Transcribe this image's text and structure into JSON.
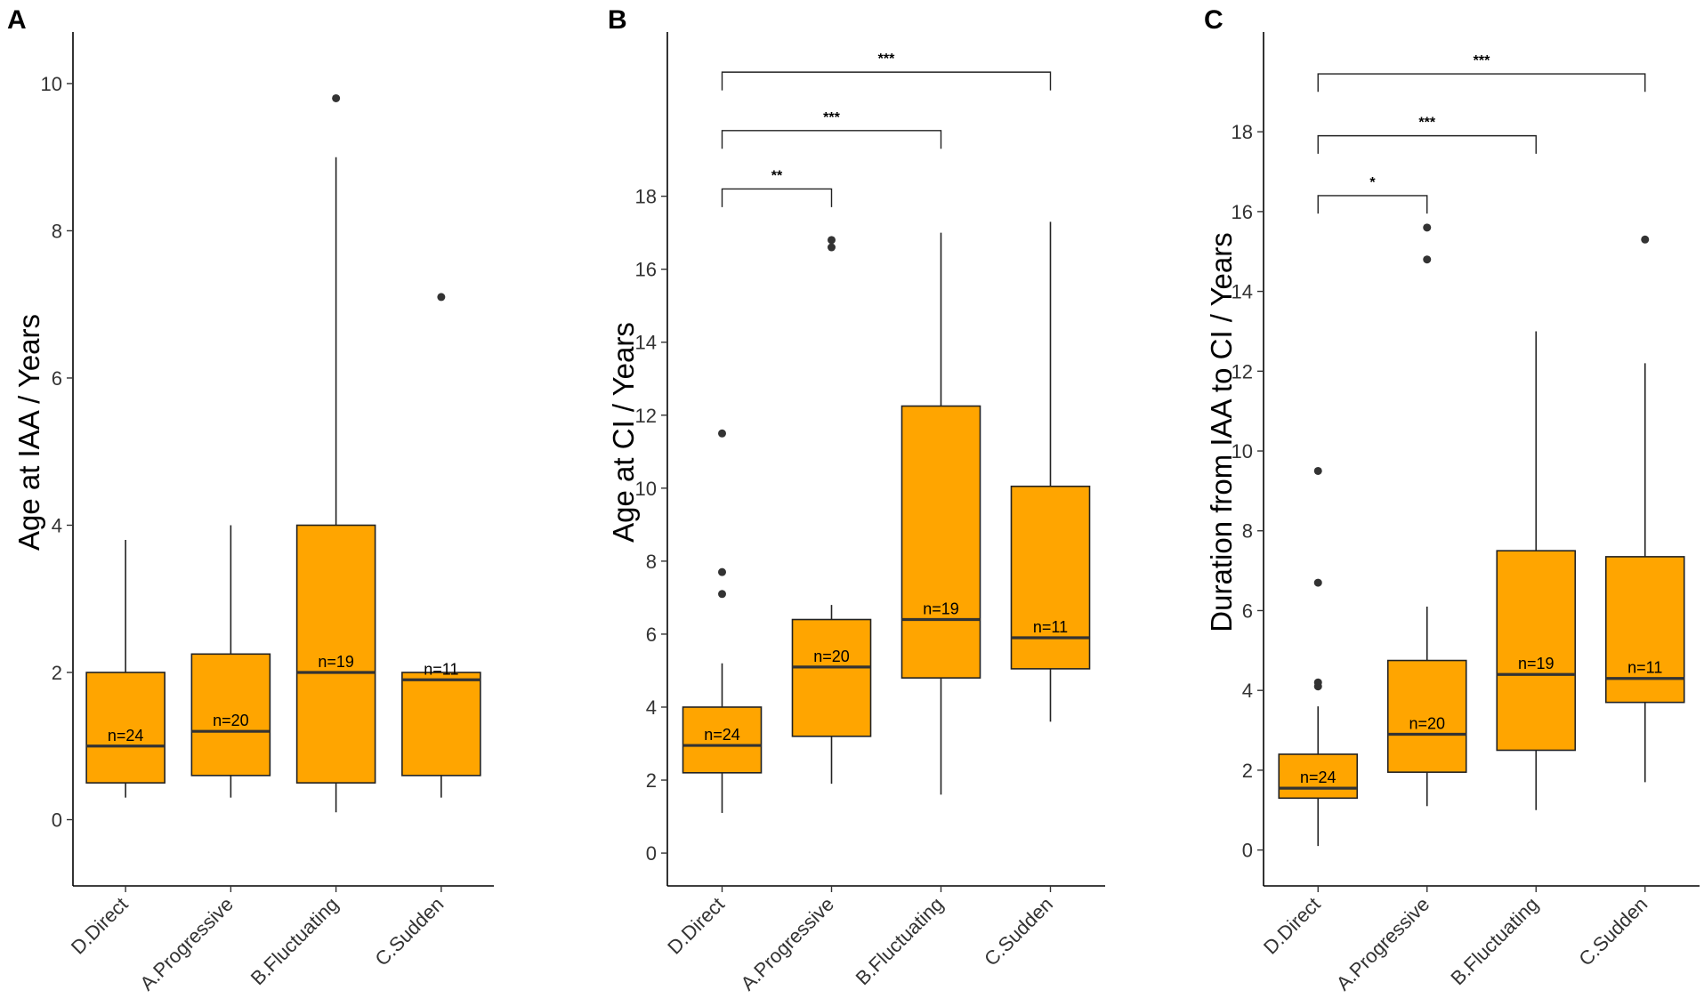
{
  "figure": {
    "panels": [
      "A",
      "B",
      "C"
    ]
  },
  "colors": {
    "box_fill": "#FFA500",
    "box_stroke": "#222222",
    "median": "#333333",
    "outlier": "#333333",
    "axis": "#000000"
  },
  "chart_data": [
    {
      "panel": "A",
      "type": "boxplot",
      "ylabel": "Age at IAA / Years",
      "xlabel": "",
      "ylim": [
        -0.9,
        10.7
      ],
      "yticks": [
        0,
        2,
        4,
        6,
        8,
        10
      ],
      "categories": [
        "D.Direct",
        "A.Progressive",
        "B.Fluctuating",
        "C.Sudden"
      ],
      "boxes": [
        {
          "category": "D.Direct",
          "whisker_low": 0.3,
          "q1": 0.5,
          "median": 1.0,
          "q3": 2.0,
          "whisker_high": 3.8,
          "outliers": [],
          "n_label": "n=24"
        },
        {
          "category": "A.Progressive",
          "whisker_low": 0.3,
          "q1": 0.6,
          "median": 1.2,
          "q3": 2.25,
          "whisker_high": 4.0,
          "outliers": [],
          "n_label": "n=20"
        },
        {
          "category": "B.Fluctuating",
          "whisker_low": 0.1,
          "q1": 0.5,
          "median": 2.0,
          "q3": 4.0,
          "whisker_high": 9.0,
          "outliers": [
            9.8
          ],
          "n_label": "n=19"
        },
        {
          "category": "C.Sudden",
          "whisker_low": 0.3,
          "q1": 0.6,
          "median": 1.9,
          "q3": 2.0,
          "whisker_high": 2.0,
          "outliers": [
            7.1
          ],
          "n_label": "n=11"
        }
      ],
      "brackets": []
    },
    {
      "panel": "B",
      "type": "boxplot",
      "ylabel": "Age at CI / Years",
      "xlabel": "",
      "ylim": [
        -0.9,
        22.5
      ],
      "yticks": [
        0,
        2,
        4,
        6,
        8,
        10,
        12,
        14,
        16,
        18
      ],
      "categories": [
        "D.Direct",
        "A.Progressive",
        "B.Fluctuating",
        "C.Sudden"
      ],
      "boxes": [
        {
          "category": "D.Direct",
          "whisker_low": 1.1,
          "q1": 2.2,
          "median": 2.95,
          "q3": 4.0,
          "whisker_high": 5.2,
          "outliers": [
            7.1,
            7.7,
            11.5
          ],
          "n_label": "n=24"
        },
        {
          "category": "A.Progressive",
          "whisker_low": 1.9,
          "q1": 3.2,
          "median": 5.1,
          "q3": 6.4,
          "whisker_high": 6.8,
          "outliers": [
            16.6,
            16.8
          ],
          "n_label": "n=20"
        },
        {
          "category": "B.Fluctuating",
          "whisker_low": 1.6,
          "q1": 4.8,
          "median": 6.4,
          "q3": 12.25,
          "whisker_high": 17.0,
          "outliers": [],
          "n_label": "n=19"
        },
        {
          "category": "C.Sudden",
          "whisker_low": 3.6,
          "q1": 5.05,
          "median": 5.9,
          "q3": 10.05,
          "whisker_high": 17.3,
          "outliers": [],
          "n_label": "n=11"
        }
      ],
      "brackets": [
        {
          "from": "D.Direct",
          "to": "A.Progressive",
          "y": 18.2,
          "drop": 0.5,
          "label": "**"
        },
        {
          "from": "D.Direct",
          "to": "B.Fluctuating",
          "y": 19.8,
          "drop": 0.5,
          "label": "***"
        },
        {
          "from": "D.Direct",
          "to": "C.Sudden",
          "y": 21.4,
          "drop": 0.5,
          "label": "***"
        }
      ]
    },
    {
      "panel": "C",
      "type": "boxplot",
      "ylabel": "Duration from IAA to CI / Years",
      "xlabel": "",
      "ylim": [
        -0.9,
        20.5
      ],
      "yticks": [
        0,
        2,
        4,
        6,
        8,
        10,
        12,
        14,
        16,
        18
      ],
      "categories": [
        "D.Direct",
        "A.Progressive",
        "B.Fluctuating",
        "C.Sudden"
      ],
      "boxes": [
        {
          "category": "D.Direct",
          "whisker_low": 0.1,
          "q1": 1.3,
          "median": 1.55,
          "q3": 2.4,
          "whisker_high": 3.6,
          "outliers": [
            4.1,
            4.2,
            6.7,
            9.5
          ],
          "n_label": "n=24"
        },
        {
          "category": "A.Progressive",
          "whisker_low": 1.1,
          "q1": 1.95,
          "median": 2.9,
          "q3": 4.75,
          "whisker_high": 6.1,
          "outliers": [
            14.8,
            15.6
          ],
          "n_label": "n=20"
        },
        {
          "category": "B.Fluctuating",
          "whisker_low": 1.0,
          "q1": 2.5,
          "median": 4.4,
          "q3": 7.5,
          "whisker_high": 13.0,
          "outliers": [],
          "n_label": "n=19"
        },
        {
          "category": "C.Sudden",
          "whisker_low": 1.7,
          "q1": 3.7,
          "median": 4.3,
          "q3": 7.35,
          "whisker_high": 12.2,
          "outliers": [
            15.3
          ],
          "n_label": "n=11"
        }
      ],
      "brackets": [
        {
          "from": "D.Direct",
          "to": "A.Progressive",
          "y": 16.4,
          "drop": 0.45,
          "label": "*"
        },
        {
          "from": "D.Direct",
          "to": "B.Fluctuating",
          "y": 17.9,
          "drop": 0.45,
          "label": "***"
        },
        {
          "from": "D.Direct",
          "to": "C.Sudden",
          "y": 19.45,
          "drop": 0.45,
          "label": "***"
        }
      ]
    }
  ]
}
